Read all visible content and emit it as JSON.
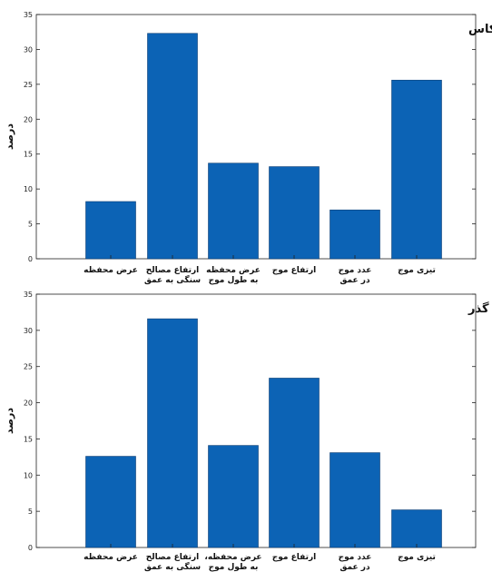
{
  "chart_data": [
    {
      "type": "bar",
      "title": "ضریب انعکاس",
      "ylabel": "درصد",
      "xlabel": "",
      "ylim": [
        0,
        35
      ],
      "yticks": [
        0,
        5,
        10,
        15,
        20,
        25,
        30,
        35
      ],
      "categories": [
        "عرض محفظه",
        "ارتفاع مصالح سنگی به عمق",
        "عرض محفظه به طول موج",
        "ارتفاع موج",
        "عدد موج در عمق",
        "تیزی موج"
      ],
      "values": [
        8.2,
        32.3,
        13.7,
        13.2,
        7.0,
        25.6
      ],
      "bar_color": "#0C63B5"
    },
    {
      "type": "bar",
      "title": "ضریب گذر",
      "ylabel": "درصد",
      "xlabel": "",
      "ylim": [
        0,
        35
      ],
      "yticks": [
        0,
        5,
        10,
        15,
        20,
        25,
        30,
        35
      ],
      "categories": [
        "عرض محفظه",
        "ارتفاع مصالح سنگی به عمق",
        "عرض محفظه، به طول موج",
        "ارتفاع موج",
        "عدد موج در عمق",
        "تیزی موج"
      ],
      "values": [
        12.6,
        31.6,
        14.1,
        23.4,
        13.1,
        5.2
      ],
      "bar_color": "#0C63B5"
    }
  ]
}
